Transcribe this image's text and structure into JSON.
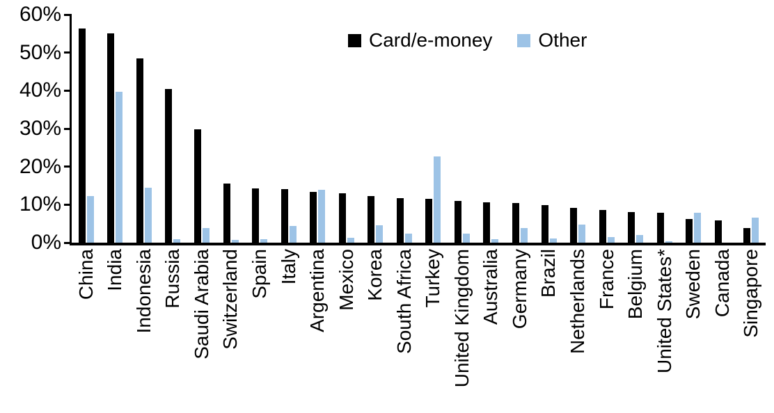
{
  "chart_data": {
    "type": "bar",
    "title": "",
    "xlabel": "",
    "ylabel": "",
    "grid": false,
    "legend_position": "top-center",
    "ylim": [
      0,
      60
    ],
    "y_tick_step": 10,
    "y_tick_labels": [
      "0%",
      "10%",
      "20%",
      "30%",
      "40%",
      "50%",
      "60%"
    ],
    "categories": [
      "China",
      "India",
      "Indonesia",
      "Russia",
      "Saudi Arabia",
      "Switzerland",
      "Spain",
      "Italy",
      "Argentina",
      "Mexico",
      "Korea",
      "South Africa",
      "Turkey",
      "United Kingdom",
      "Australia",
      "Germany",
      "Brazil",
      "Netherlands",
      "France",
      "Belgium",
      "United States*",
      "Sweden",
      "Canada",
      "Singapore"
    ],
    "series": [
      {
        "name": "Card/e-money",
        "color": "#000000",
        "values": [
          56.4,
          55.1,
          48.4,
          40.5,
          29.8,
          15.6,
          14.2,
          14.1,
          13.3,
          12.9,
          12.2,
          11.7,
          11.6,
          11.0,
          10.7,
          10.5,
          9.9,
          9.1,
          8.6,
          8.1,
          7.8,
          6.3,
          5.8,
          3.8
        ]
      },
      {
        "name": "Other",
        "color": "#9DC3E6",
        "values": [
          12.3,
          39.7,
          14.4,
          1.0,
          3.9,
          0.8,
          1.0,
          4.4,
          13.9,
          1.3,
          4.5,
          2.3,
          22.6,
          2.3,
          0.9,
          3.8,
          1.1,
          4.8,
          1.5,
          2.0,
          0.3,
          7.9,
          0,
          6.5
        ]
      }
    ]
  }
}
